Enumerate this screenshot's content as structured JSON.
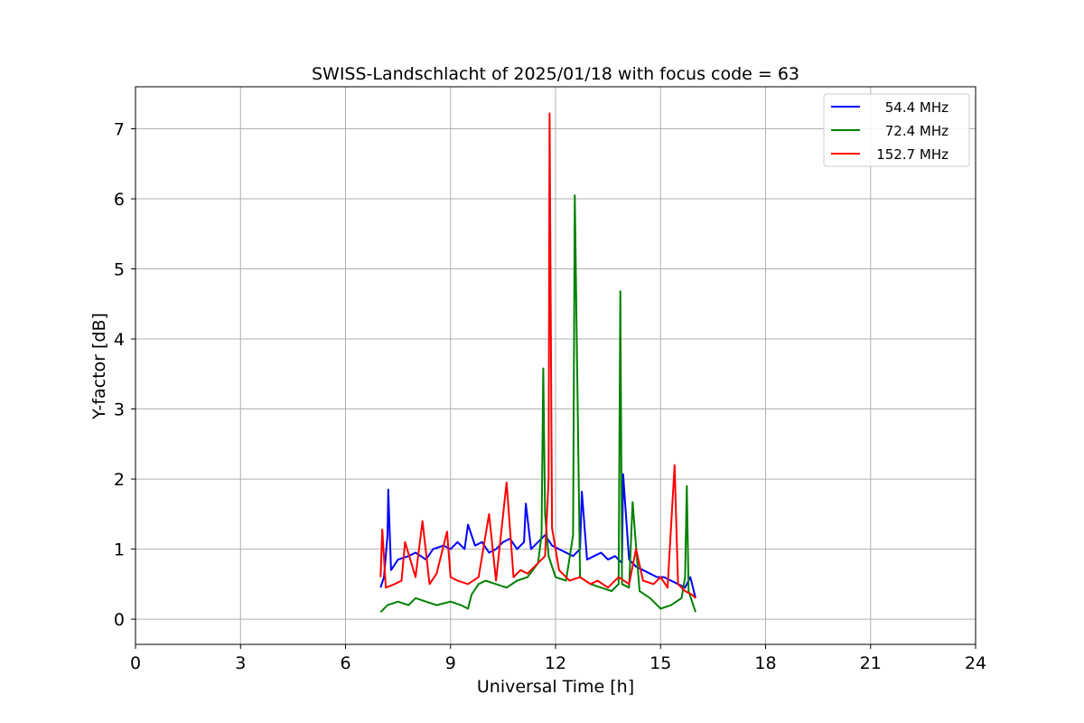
{
  "chart_data": {
    "type": "line",
    "title": "SWISS-Landschlacht of 2025/01/18 with focus code = 63",
    "xlabel": "Universal Time [h]",
    "ylabel": "Y-factor [dB]",
    "xlim": [
      0,
      24
    ],
    "ylim": [
      -0.36,
      7.6
    ],
    "xticks": [
      0,
      3,
      6,
      9,
      12,
      15,
      18,
      21,
      24
    ],
    "yticks": [
      0,
      1,
      2,
      3,
      4,
      5,
      6,
      7
    ],
    "grid": true,
    "legend_position": "top-right",
    "series": [
      {
        "name": "54.4 MHz",
        "color": "#0000ff",
        "x": [
          7.0,
          7.1,
          7.2,
          7.22,
          7.3,
          7.5,
          7.8,
          8.0,
          8.3,
          8.5,
          8.8,
          9.0,
          9.2,
          9.4,
          9.5,
          9.7,
          9.9,
          10.1,
          10.3,
          10.5,
          10.7,
          10.9,
          11.1,
          11.15,
          11.3,
          11.5,
          11.7,
          11.9,
          12.1,
          12.3,
          12.5,
          12.7,
          12.75,
          12.9,
          13.1,
          13.3,
          13.5,
          13.7,
          13.9,
          13.93,
          14.1,
          14.3,
          14.5,
          14.7,
          14.9,
          15.1,
          15.3,
          15.5,
          15.7,
          15.85,
          16.0
        ],
        "y": [
          0.45,
          0.6,
          1.2,
          1.85,
          0.7,
          0.85,
          0.9,
          0.95,
          0.85,
          1.0,
          1.05,
          1.0,
          1.1,
          1.0,
          1.35,
          1.05,
          1.1,
          0.95,
          1.0,
          1.1,
          1.15,
          1.0,
          1.1,
          1.65,
          1.0,
          1.1,
          1.2,
          1.05,
          1.0,
          0.95,
          0.9,
          1.0,
          1.82,
          0.85,
          0.9,
          0.95,
          0.85,
          0.9,
          0.8,
          2.07,
          0.85,
          0.75,
          0.7,
          0.65,
          0.6,
          0.6,
          0.55,
          0.5,
          0.45,
          0.6,
          0.3
        ]
      },
      {
        "name": "72.4 MHz",
        "color": "#008000",
        "x": [
          7.0,
          7.2,
          7.5,
          7.8,
          8.0,
          8.3,
          8.6,
          9.0,
          9.3,
          9.5,
          9.6,
          9.8,
          10.0,
          10.3,
          10.6,
          10.9,
          11.2,
          11.5,
          11.6,
          11.65,
          11.7,
          11.8,
          12.0,
          12.3,
          12.5,
          12.55,
          12.7,
          13.0,
          13.3,
          13.6,
          13.8,
          13.85,
          13.9,
          14.1,
          14.2,
          14.4,
          14.7,
          15.0,
          15.3,
          15.6,
          15.7,
          15.75,
          15.8,
          16.0
        ],
        "y": [
          0.1,
          0.2,
          0.25,
          0.2,
          0.3,
          0.25,
          0.2,
          0.25,
          0.2,
          0.15,
          0.35,
          0.5,
          0.55,
          0.5,
          0.45,
          0.55,
          0.6,
          0.8,
          1.2,
          3.58,
          1.5,
          0.9,
          0.6,
          0.55,
          1.2,
          6.05,
          0.6,
          0.5,
          0.45,
          0.4,
          0.5,
          4.68,
          0.5,
          0.45,
          1.67,
          0.4,
          0.3,
          0.15,
          0.2,
          0.3,
          0.6,
          1.9,
          0.4,
          0.1
        ]
      },
      {
        "name": "152.7 MHz",
        "color": "#ff0000",
        "x": [
          7.0,
          7.05,
          7.15,
          7.4,
          7.6,
          7.7,
          8.0,
          8.2,
          8.4,
          8.6,
          8.9,
          9.0,
          9.2,
          9.5,
          9.8,
          10.1,
          10.3,
          10.6,
          10.8,
          11.0,
          11.2,
          11.5,
          11.7,
          11.8,
          11.83,
          11.9,
          12.1,
          12.4,
          12.7,
          13.0,
          13.2,
          13.5,
          13.8,
          14.1,
          14.3,
          14.5,
          14.8,
          15.0,
          15.2,
          15.4,
          15.5,
          15.7,
          15.9,
          16.0
        ],
        "y": [
          0.6,
          1.28,
          0.45,
          0.5,
          0.55,
          1.1,
          0.6,
          1.4,
          0.5,
          0.65,
          1.25,
          0.6,
          0.55,
          0.5,
          0.6,
          1.5,
          0.55,
          1.95,
          0.6,
          0.7,
          0.65,
          0.8,
          0.9,
          2.0,
          7.22,
          1.3,
          0.7,
          0.55,
          0.6,
          0.5,
          0.55,
          0.45,
          0.6,
          0.5,
          1.0,
          0.55,
          0.5,
          0.6,
          0.45,
          2.2,
          0.5,
          0.4,
          0.35,
          0.3
        ]
      }
    ]
  }
}
